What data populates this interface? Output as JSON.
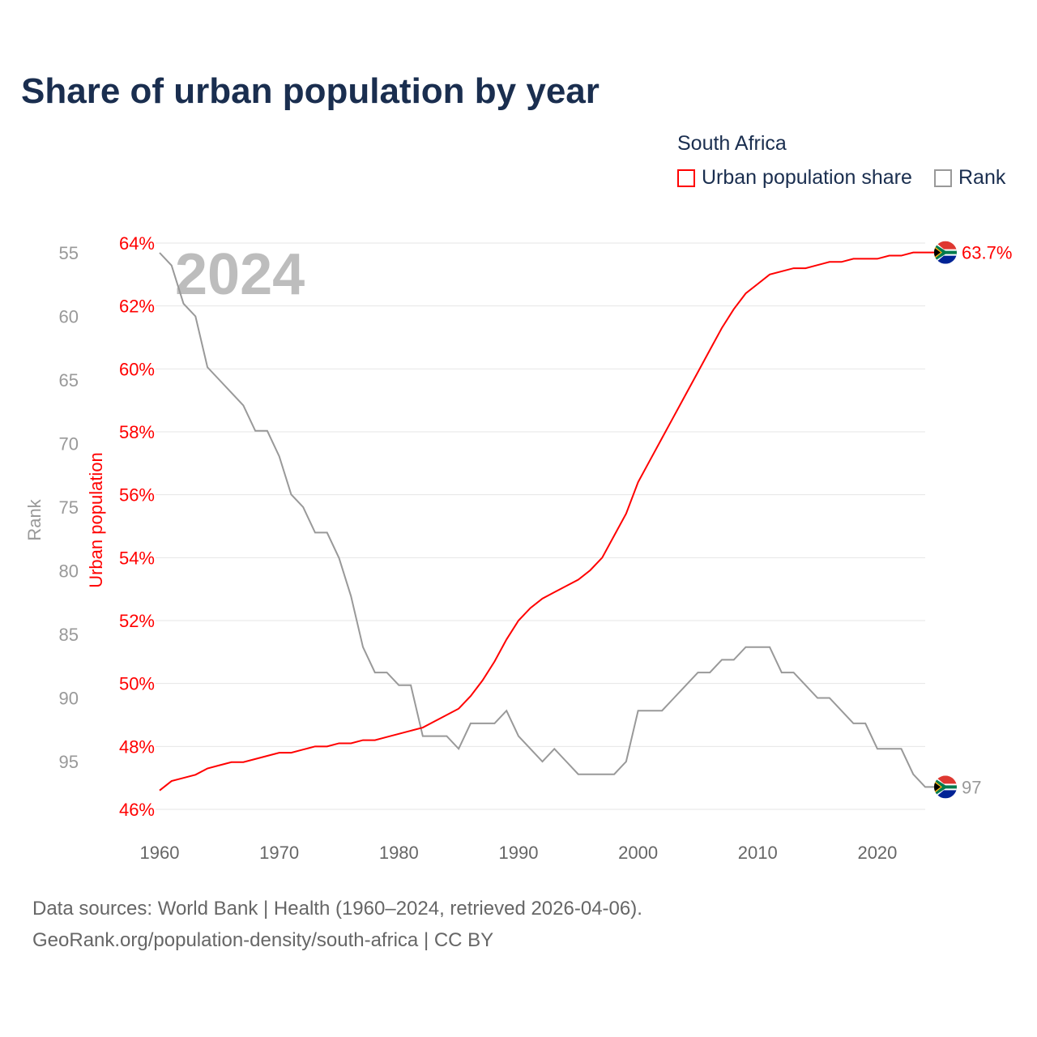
{
  "chart_data": {
    "type": "line",
    "title": "Share of urban population by year",
    "legend_title": "South Africa",
    "series_names": {
      "urban": "Urban population share",
      "rank": "Rank"
    },
    "left_axis_label": "Rank",
    "right_axis_label": "Urban population",
    "year_label": "2024",
    "x": [
      1960,
      1961,
      1962,
      1963,
      1964,
      1965,
      1966,
      1967,
      1968,
      1969,
      1970,
      1971,
      1972,
      1973,
      1974,
      1975,
      1976,
      1977,
      1978,
      1979,
      1980,
      1981,
      1982,
      1983,
      1984,
      1985,
      1986,
      1987,
      1988,
      1989,
      1990,
      1991,
      1992,
      1993,
      1994,
      1995,
      1996,
      1997,
      1998,
      1999,
      2000,
      2001,
      2002,
      2003,
      2004,
      2005,
      2006,
      2007,
      2008,
      2009,
      2010,
      2011,
      2012,
      2013,
      2014,
      2015,
      2016,
      2017,
      2018,
      2019,
      2020,
      2021,
      2022,
      2023,
      2024
    ],
    "series": [
      {
        "name": "Urban population share",
        "color": "#ff0000",
        "unit": "%",
        "values": [
          46.6,
          46.9,
          47.0,
          47.1,
          47.3,
          47.4,
          47.5,
          47.5,
          47.6,
          47.7,
          47.8,
          47.8,
          47.9,
          48.0,
          48.0,
          48.1,
          48.1,
          48.2,
          48.2,
          48.3,
          48.4,
          48.5,
          48.6,
          48.8,
          49.0,
          49.2,
          49.6,
          50.1,
          50.7,
          51.4,
          52.0,
          52.4,
          52.7,
          52.9,
          53.1,
          53.3,
          53.6,
          54.0,
          54.7,
          55.4,
          56.4,
          57.1,
          57.8,
          58.5,
          59.2,
          59.9,
          60.6,
          61.3,
          61.9,
          62.4,
          62.7,
          63.0,
          63.1,
          63.2,
          63.2,
          63.3,
          63.4,
          63.4,
          63.5,
          63.5,
          63.5,
          63.6,
          63.6,
          63.7,
          63.7
        ],
        "end_label": "63.7%"
      },
      {
        "name": "Rank",
        "color": "#999999",
        "values": [
          55,
          56,
          59,
          60,
          64,
          65,
          66,
          67,
          69,
          69,
          71,
          74,
          75,
          77,
          77,
          79,
          82,
          86,
          88,
          88,
          89,
          89,
          93,
          93,
          93,
          94,
          92,
          92,
          92,
          91,
          93,
          94,
          95,
          94,
          95,
          96,
          96,
          96,
          96,
          95,
          91,
          91,
          91,
          90,
          89,
          88,
          88,
          87,
          87,
          86,
          86,
          86,
          88,
          88,
          89,
          90,
          90,
          91,
          92,
          92,
          94,
          94,
          94,
          96,
          97
        ],
        "end_label": "97"
      }
    ],
    "x_ticks": [
      "1960",
      "1970",
      "1980",
      "1990",
      "2000",
      "2010",
      "2020"
    ],
    "urban_ticks": [
      "64%",
      "62%",
      "60%",
      "58%",
      "56%",
      "54%",
      "52%",
      "50%",
      "48%",
      "46%"
    ],
    "rank_ticks": [
      "55",
      "60",
      "65",
      "70",
      "75",
      "80",
      "85",
      "90",
      "95"
    ],
    "urban_ylim": [
      46,
      64
    ],
    "rank_ylim": [
      55,
      95
    ],
    "xlim": [
      1960,
      2024
    ]
  },
  "footer": {
    "line1": "Data sources: World Bank | Health (1960–2024, retrieved 2026-04-06).",
    "line2": "GeoRank.org/population-density/south-africa | CC BY"
  }
}
